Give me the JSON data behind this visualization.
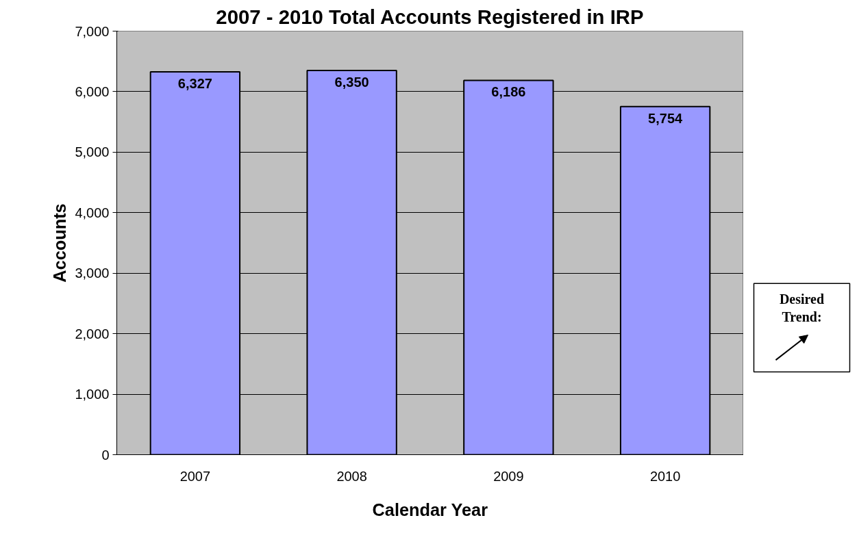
{
  "chart_data": {
    "type": "bar",
    "title": "2007 - 2010 Total Accounts Registered in IRP",
    "xlabel": "Calendar Year",
    "ylabel": "Accounts",
    "categories": [
      "2007",
      "2008",
      "2009",
      "2010"
    ],
    "values": [
      6327,
      6350,
      6186,
      5754
    ],
    "color": "#9999ff",
    "value_labels": [
      "6,327",
      "6,350",
      "6,186",
      "5,754"
    ],
    "ylim": [
      0,
      7000
    ],
    "yticks": [
      {
        "value": 0,
        "label": "0"
      },
      {
        "value": 1000,
        "label": "1,000"
      },
      {
        "value": 2000,
        "label": "2,000"
      },
      {
        "value": 3000,
        "label": "3,000"
      },
      {
        "value": 4000,
        "label": "4,000"
      },
      {
        "value": 5000,
        "label": "5,000"
      },
      {
        "value": 6000,
        "label": "6,000"
      },
      {
        "value": 7000,
        "label": "7,000"
      }
    ],
    "grid": "y",
    "annotations": [
      "Desired Trend:"
    ]
  }
}
